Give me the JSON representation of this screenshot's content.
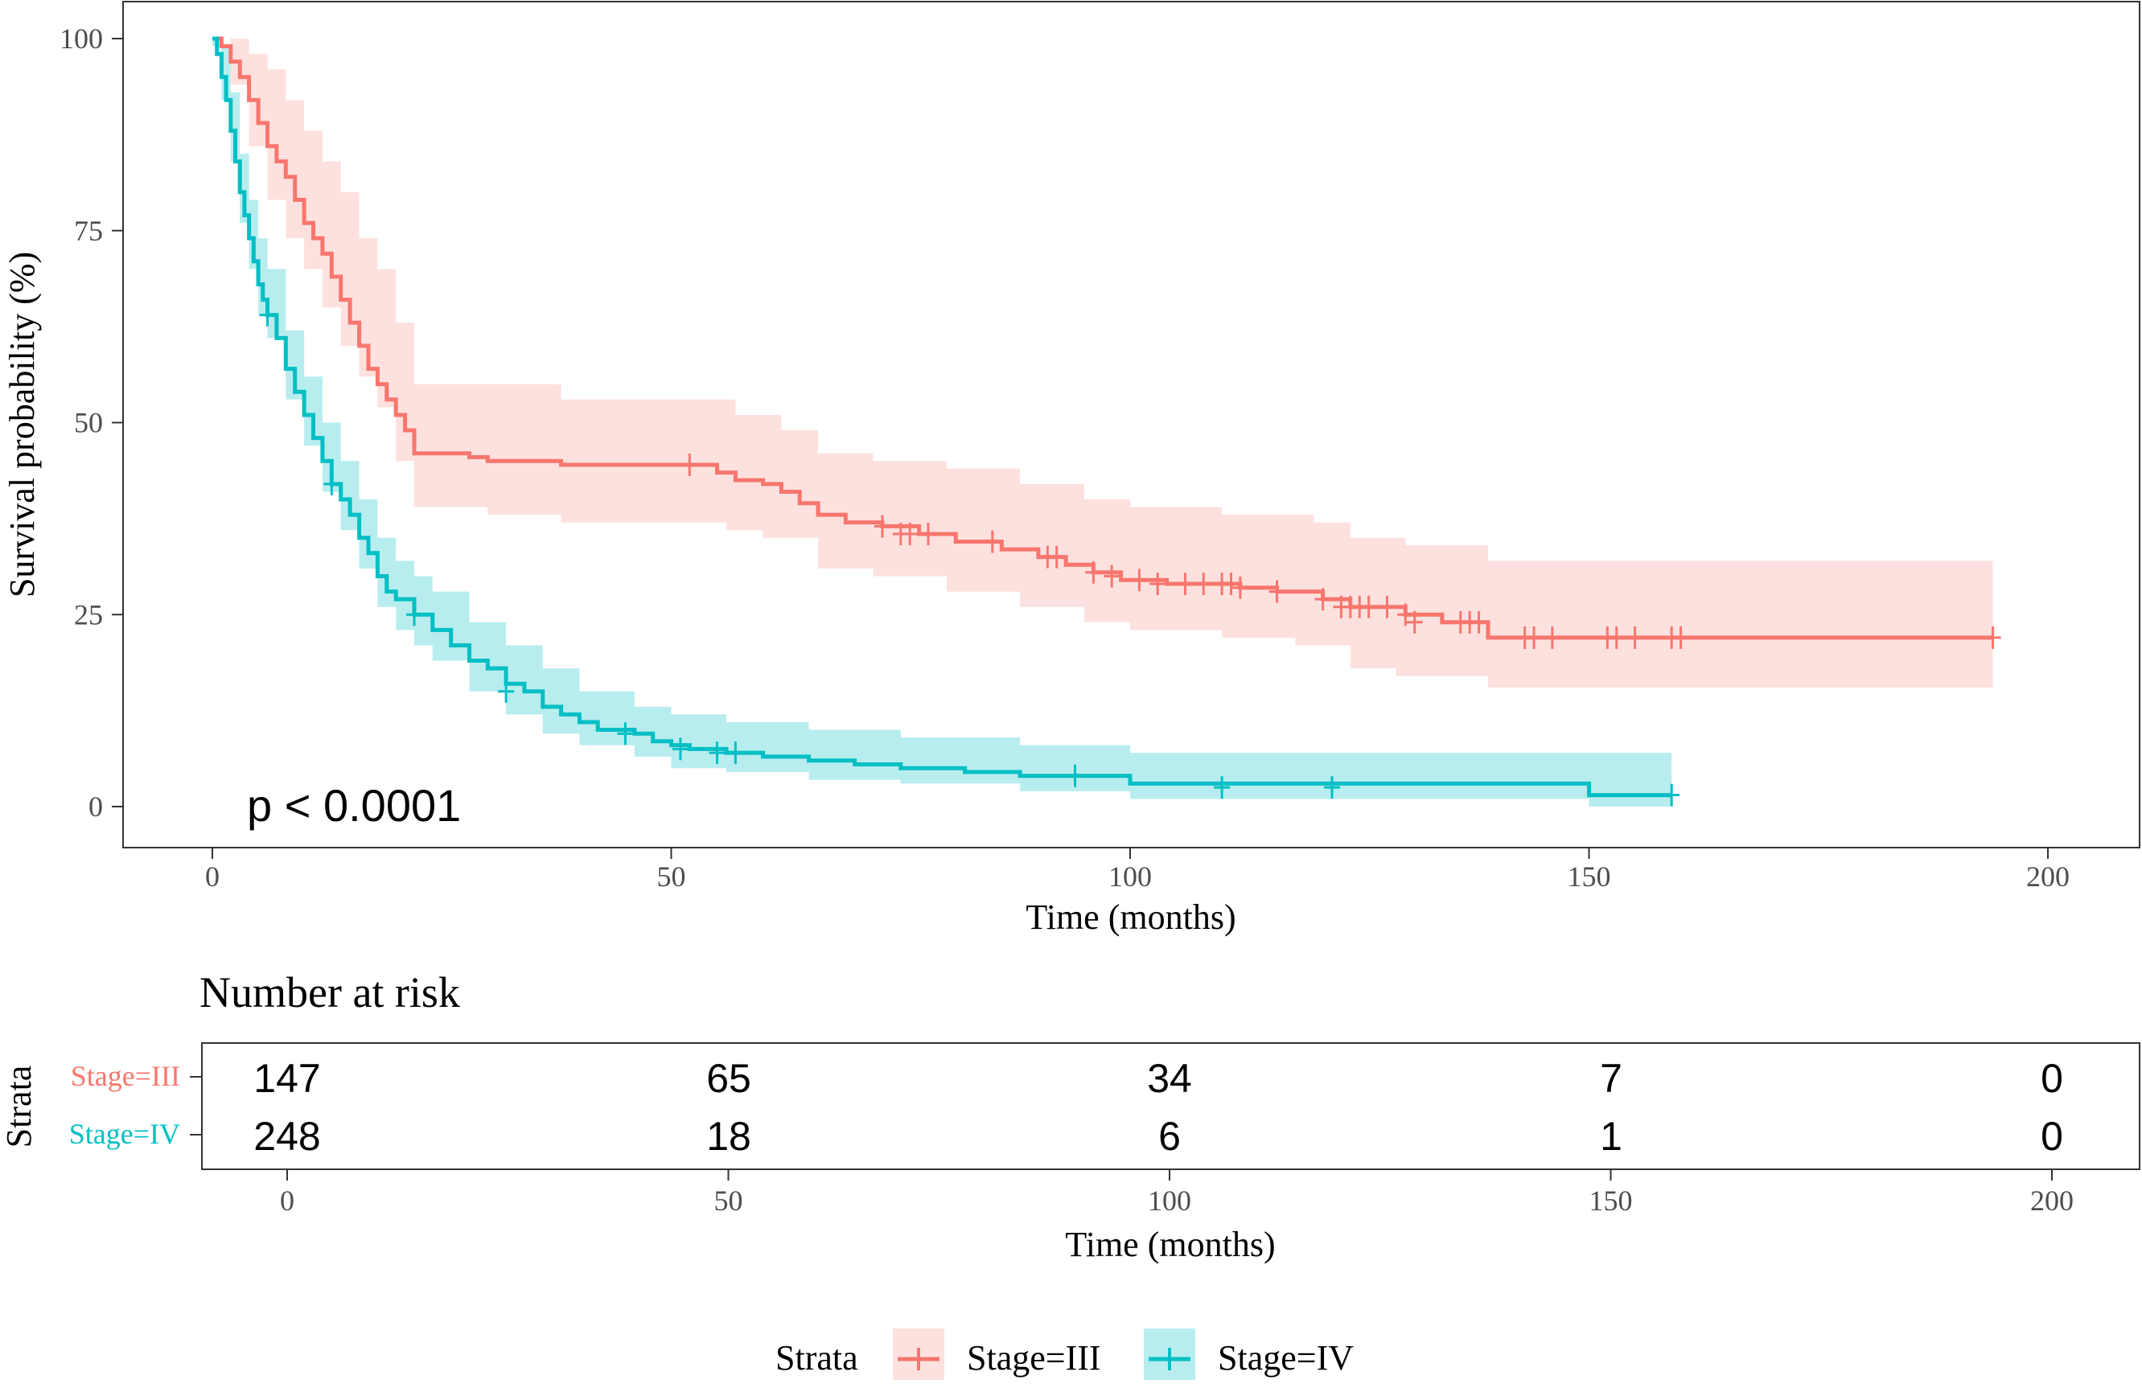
{
  "chart_data": {
    "type": "line",
    "subtype": "kaplan-meier survival curve with confidence bands",
    "title": "",
    "xlabel": "Time (months)",
    "ylabel": "Survival probability (%)",
    "xlim": [
      -10,
      210
    ],
    "ylim": [
      -5,
      105
    ],
    "x_ticks": [
      0,
      50,
      100,
      150,
      200
    ],
    "y_ticks": [
      0,
      25,
      50,
      75,
      100
    ],
    "grid": false,
    "annotation": "p < 0.0001",
    "series": [
      {
        "name": "Stage=III",
        "color": "#F8766D",
        "band_color": "#F8766D",
        "steps": [
          [
            0,
            100
          ],
          [
            1,
            99
          ],
          [
            2,
            97
          ],
          [
            3,
            95
          ],
          [
            4,
            92
          ],
          [
            5,
            89
          ],
          [
            6,
            86
          ],
          [
            7,
            84
          ],
          [
            8,
            82
          ],
          [
            9,
            79
          ],
          [
            10,
            76
          ],
          [
            11,
            74
          ],
          [
            12,
            72
          ],
          [
            13,
            69
          ],
          [
            14,
            66
          ],
          [
            15,
            63
          ],
          [
            16,
            60
          ],
          [
            17,
            57
          ],
          [
            18,
            55
          ],
          [
            19,
            53
          ],
          [
            20,
            51
          ],
          [
            21,
            49
          ],
          [
            22,
            46
          ],
          [
            25,
            46
          ],
          [
            28,
            45.5
          ],
          [
            30,
            45
          ],
          [
            38,
            44.5
          ],
          [
            52,
            44.5
          ],
          [
            55,
            43.5
          ],
          [
            57,
            42.5
          ],
          [
            60,
            42
          ],
          [
            62,
            41
          ],
          [
            64,
            39.5
          ],
          [
            66,
            38
          ],
          [
            69,
            37
          ],
          [
            73,
            36.5
          ],
          [
            77,
            35.5
          ],
          [
            81,
            34.5
          ],
          [
            86,
            33.5
          ],
          [
            90,
            32.5
          ],
          [
            93,
            31.5
          ],
          [
            96,
            30.5
          ],
          [
            99,
            29.5
          ],
          [
            104,
            29
          ],
          [
            112,
            28.5
          ],
          [
            116,
            28
          ],
          [
            121,
            27
          ],
          [
            124,
            26
          ],
          [
            130,
            25
          ],
          [
            134,
            24
          ],
          [
            139,
            22
          ],
          [
            194,
            22
          ]
        ],
        "lower": [
          [
            0,
            100
          ],
          [
            2,
            94
          ],
          [
            4,
            86
          ],
          [
            6,
            79
          ],
          [
            8,
            74
          ],
          [
            10,
            70
          ],
          [
            12,
            65
          ],
          [
            14,
            60
          ],
          [
            16,
            56
          ],
          [
            18,
            52
          ],
          [
            20,
            45
          ],
          [
            22,
            39
          ],
          [
            30,
            38
          ],
          [
            38,
            37
          ],
          [
            52,
            37
          ],
          [
            56,
            36
          ],
          [
            60,
            35
          ],
          [
            66,
            31
          ],
          [
            72,
            30
          ],
          [
            80,
            28
          ],
          [
            88,
            26
          ],
          [
            95,
            24
          ],
          [
            100,
            23
          ],
          [
            110,
            22
          ],
          [
            118,
            21
          ],
          [
            124,
            18
          ],
          [
            129,
            17
          ],
          [
            139,
            15.5
          ],
          [
            194,
            15.5
          ]
        ],
        "upper": [
          [
            0,
            100
          ],
          [
            2,
            100
          ],
          [
            4,
            98
          ],
          [
            6,
            96
          ],
          [
            8,
            92
          ],
          [
            10,
            88
          ],
          [
            12,
            84
          ],
          [
            14,
            80
          ],
          [
            16,
            74
          ],
          [
            18,
            70
          ],
          [
            20,
            63
          ],
          [
            22,
            55
          ],
          [
            38,
            53
          ],
          [
            52,
            53
          ],
          [
            57,
            51
          ],
          [
            62,
            49
          ],
          [
            66,
            46
          ],
          [
            72,
            45
          ],
          [
            80,
            44
          ],
          [
            88,
            42
          ],
          [
            95,
            40
          ],
          [
            100,
            39
          ],
          [
            110,
            38
          ],
          [
            120,
            37
          ],
          [
            124,
            35
          ],
          [
            130,
            34
          ],
          [
            139,
            32
          ],
          [
            194,
            32
          ]
        ],
        "censored": [
          [
            52,
            44.5
          ],
          [
            73,
            36.5
          ],
          [
            75,
            35.5
          ],
          [
            76,
            35.5
          ],
          [
            78,
            35.5
          ],
          [
            85,
            34.5
          ],
          [
            91,
            32.5
          ],
          [
            92,
            32.5
          ],
          [
            96,
            30.5
          ],
          [
            98,
            30
          ],
          [
            101,
            29.5
          ],
          [
            103,
            29
          ],
          [
            106,
            29
          ],
          [
            108,
            29
          ],
          [
            110,
            29
          ],
          [
            111,
            29
          ],
          [
            112,
            28.5
          ],
          [
            116,
            28
          ],
          [
            121,
            27
          ],
          [
            123,
            26
          ],
          [
            124,
            26
          ],
          [
            125,
            26
          ],
          [
            126,
            26
          ],
          [
            128,
            26
          ],
          [
            130,
            25
          ],
          [
            131,
            24
          ],
          [
            136,
            24
          ],
          [
            137,
            24
          ],
          [
            138,
            24
          ],
          [
            143,
            22
          ],
          [
            144,
            22
          ],
          [
            146,
            22
          ],
          [
            152,
            22
          ],
          [
            153,
            22
          ],
          [
            155,
            22
          ],
          [
            159,
            22
          ],
          [
            160,
            22
          ],
          [
            194,
            22
          ]
        ]
      },
      {
        "name": "Stage=IV",
        "color": "#00BFC4",
        "band_color": "#00BFC4",
        "steps": [
          [
            0,
            100
          ],
          [
            0.5,
            98
          ],
          [
            1,
            95
          ],
          [
            1.5,
            92
          ],
          [
            2,
            88
          ],
          [
            2.5,
            84
          ],
          [
            3,
            80
          ],
          [
            3.5,
            77
          ],
          [
            4,
            74
          ],
          [
            4.5,
            71
          ],
          [
            5,
            68
          ],
          [
            5.5,
            66
          ],
          [
            6,
            64
          ],
          [
            7,
            61
          ],
          [
            8,
            57
          ],
          [
            9,
            54
          ],
          [
            10,
            51
          ],
          [
            11,
            48
          ],
          [
            12,
            45
          ],
          [
            13,
            42
          ],
          [
            14,
            40
          ],
          [
            15,
            38
          ],
          [
            16,
            35
          ],
          [
            17,
            33
          ],
          [
            18,
            30
          ],
          [
            19,
            28
          ],
          [
            20,
            27
          ],
          [
            22,
            25
          ],
          [
            24,
            23
          ],
          [
            26,
            21
          ],
          [
            28,
            19
          ],
          [
            30,
            18
          ],
          [
            32,
            16
          ],
          [
            34,
            15
          ],
          [
            36,
            13
          ],
          [
            38,
            12
          ],
          [
            40,
            11
          ],
          [
            42,
            10
          ],
          [
            46,
            9.5
          ],
          [
            48,
            8.5
          ],
          [
            50,
            8
          ],
          [
            52,
            7.5
          ],
          [
            56,
            7
          ],
          [
            60,
            6.5
          ],
          [
            65,
            6
          ],
          [
            70,
            5.5
          ],
          [
            75,
            5
          ],
          [
            82,
            4.5
          ],
          [
            88,
            4
          ],
          [
            100,
            3
          ],
          [
            150,
            1.5
          ],
          [
            159,
            1.5
          ]
        ],
        "lower": [
          [
            0,
            99
          ],
          [
            1,
            92
          ],
          [
            2,
            84
          ],
          [
            3,
            76
          ],
          [
            4,
            70
          ],
          [
            5,
            64
          ],
          [
            6,
            61
          ],
          [
            8,
            53
          ],
          [
            10,
            47
          ],
          [
            12,
            41
          ],
          [
            14,
            36
          ],
          [
            16,
            31
          ],
          [
            18,
            26
          ],
          [
            20,
            23
          ],
          [
            22,
            21
          ],
          [
            24,
            19
          ],
          [
            28,
            15
          ],
          [
            32,
            12
          ],
          [
            36,
            9.5
          ],
          [
            40,
            8
          ],
          [
            46,
            6.5
          ],
          [
            50,
            5
          ],
          [
            56,
            4.5
          ],
          [
            65,
            3.5
          ],
          [
            75,
            3
          ],
          [
            88,
            2
          ],
          [
            100,
            1
          ],
          [
            150,
            0
          ],
          [
            159,
            0
          ]
        ],
        "upper": [
          [
            0,
            100
          ],
          [
            1,
            99
          ],
          [
            2,
            93
          ],
          [
            3,
            85
          ],
          [
            4,
            79
          ],
          [
            5,
            74
          ],
          [
            6,
            70
          ],
          [
            8,
            62
          ],
          [
            10,
            56
          ],
          [
            12,
            50
          ],
          [
            14,
            45
          ],
          [
            16,
            40
          ],
          [
            18,
            35
          ],
          [
            20,
            32
          ],
          [
            22,
            30
          ],
          [
            24,
            28
          ],
          [
            28,
            24
          ],
          [
            32,
            21
          ],
          [
            36,
            18
          ],
          [
            40,
            15
          ],
          [
            46,
            13
          ],
          [
            50,
            12
          ],
          [
            56,
            11
          ],
          [
            65,
            10
          ],
          [
            75,
            9
          ],
          [
            88,
            8
          ],
          [
            100,
            7
          ],
          [
            150,
            7
          ],
          [
            159,
            7
          ]
        ],
        "censored": [
          [
            6,
            64
          ],
          [
            13,
            42
          ],
          [
            22,
            25
          ],
          [
            32,
            15
          ],
          [
            45,
            9.5
          ],
          [
            51,
            7.5
          ],
          [
            55,
            7
          ],
          [
            57,
            7
          ],
          [
            94,
            4
          ],
          [
            110,
            2.5
          ],
          [
            122,
            2.5
          ],
          [
            159,
            1.5
          ]
        ]
      }
    ]
  },
  "risk_table": {
    "title": "Number at risk",
    "y_axis_label": "Strata",
    "xlabel": "Time (months)",
    "x_ticks": [
      0,
      50,
      100,
      150,
      200
    ],
    "rows": [
      {
        "label": "Stage=III",
        "color": "#F8766D",
        "values": [
          "147",
          "65",
          "34",
          "7",
          "0"
        ]
      },
      {
        "label": "Stage=IV",
        "color": "#00BFC4",
        "values": [
          "248",
          "18",
          "6",
          "1",
          "0"
        ]
      }
    ]
  },
  "legend": {
    "title": "Strata",
    "position": "bottom",
    "items": [
      {
        "label": "Stage=III",
        "color": "#F8766D"
      },
      {
        "label": "Stage=IV",
        "color": "#00BFC4"
      }
    ]
  }
}
